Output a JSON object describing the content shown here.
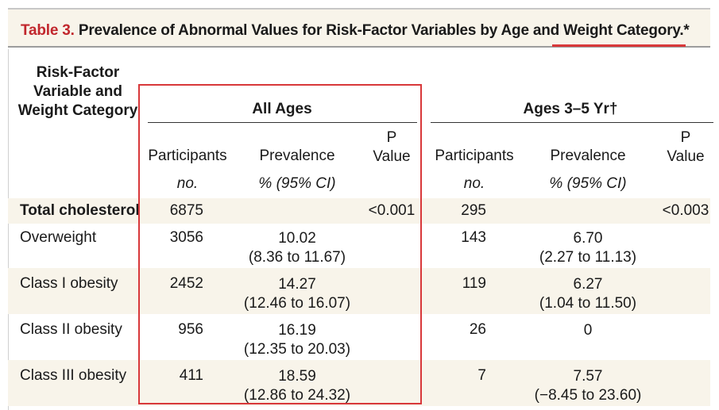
{
  "title": {
    "label": "Table 3.",
    "text": "Prevalence of Abnormal Values for Risk-Factor Variables by Age and Weight Category.*"
  },
  "stub_header": [
    "Risk-Factor",
    "Variable and",
    "Weight Category"
  ],
  "groups": [
    {
      "name": "All Ages"
    },
    {
      "name": "Ages 3–5 Yr†"
    }
  ],
  "columns": {
    "participants": "Participants",
    "prevalence": "Prevalence",
    "p_value": [
      "P",
      "Value"
    ],
    "participants_unit": "no.",
    "prevalence_unit": "% (95% CI)"
  },
  "rows": [
    {
      "label": "Total cholesterol",
      "bold": true,
      "all": {
        "n": "6875",
        "prev": "",
        "ci": "",
        "p": "<0.001"
      },
      "young": {
        "n": "295",
        "prev": "",
        "ci": "",
        "p": "<0.003"
      }
    },
    {
      "label": "Overweight",
      "all": {
        "n": "3056",
        "prev": "10.02",
        "ci": "(8.36 to 11.67)",
        "p": ""
      },
      "young": {
        "n": "143",
        "prev": "6.70",
        "ci": "(2.27 to 11.13)",
        "p": ""
      }
    },
    {
      "label": "Class I obesity",
      "all": {
        "n": "2452",
        "prev": "14.27",
        "ci": "(12.46 to 16.07)",
        "p": ""
      },
      "young": {
        "n": "119",
        "prev": "6.27",
        "ci": "(1.04 to 11.50)",
        "p": ""
      }
    },
    {
      "label": "Class II obesity",
      "all": {
        "n": "956",
        "prev": "16.19",
        "ci": "(12.35 to 20.03)",
        "p": ""
      },
      "young": {
        "n": "26",
        "prev": "0",
        "ci": "",
        "p": ""
      }
    },
    {
      "label": "Class III obesity",
      "all": {
        "n": "411",
        "prev": "18.59",
        "ci": "(12.86 to 24.32)",
        "p": ""
      },
      "young": {
        "n": "7",
        "prev": "7.57",
        "ci": "(−8.45 to 23.60)",
        "p": ""
      }
    }
  ],
  "colors": {
    "accent": "#c1272d",
    "band": "#f8f4ea",
    "box": "#d8383a"
  }
}
